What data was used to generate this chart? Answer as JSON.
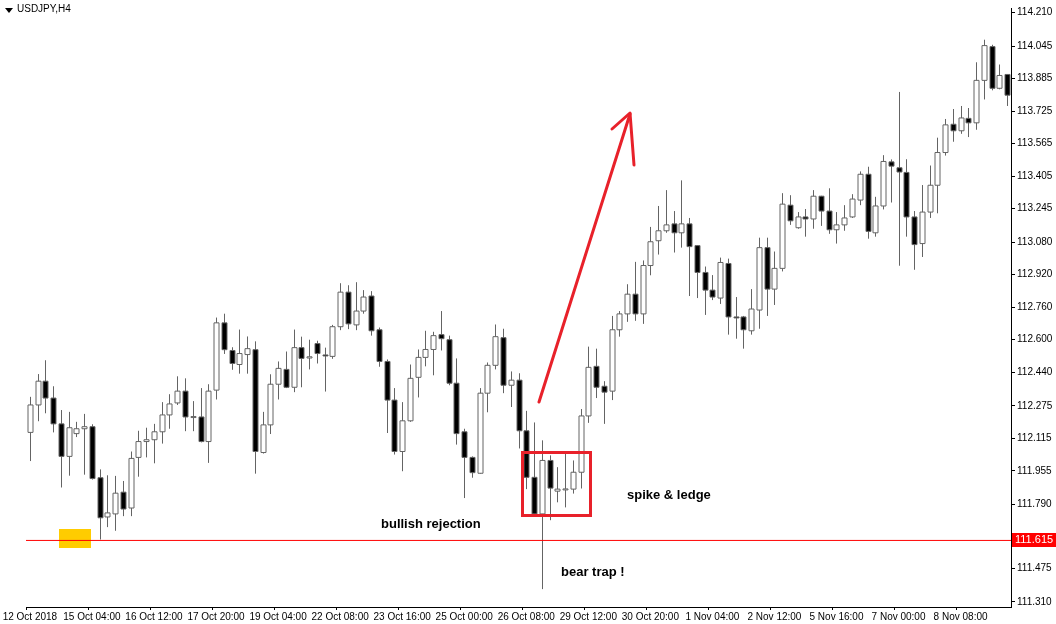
{
  "chart_data": {
    "type": "candlestick",
    "title": "USDJPY,H4",
    "categories": [
      "12 Oct 2018",
      null,
      null,
      null,
      null,
      null,
      null,
      null,
      "15 Oct 04:00",
      null,
      null,
      null,
      null,
      null,
      null,
      null,
      "16 Oct 12:00",
      null,
      null,
      null,
      null,
      null,
      null,
      null,
      "17 Oct 20:00",
      null,
      null,
      null,
      null,
      null,
      null,
      null,
      "19 Oct 04:00",
      null,
      null,
      null,
      null,
      null,
      null,
      null,
      "22 Oct 08:00",
      null,
      null,
      null,
      null,
      null,
      null,
      null,
      "23 Oct 16:00",
      null,
      null,
      null,
      null,
      null,
      null,
      null,
      "25 Oct 00:00",
      null,
      null,
      null,
      null,
      null,
      null,
      null,
      "26 Oct 08:00",
      null,
      null,
      null,
      null,
      null,
      null,
      null,
      "29 Oct 12:00",
      null,
      null,
      null,
      null,
      null,
      null,
      null,
      "30 Oct 20:00",
      null,
      null,
      null,
      null,
      null,
      null,
      null,
      "1 Nov 04:00",
      null,
      null,
      null,
      null,
      null,
      null,
      null,
      "2 Nov 12:00",
      null,
      null,
      null,
      null,
      null,
      null,
      null,
      "5 Nov 16:00",
      null,
      null,
      null,
      null,
      null,
      null,
      null,
      "7 Nov 00:00",
      null,
      null,
      null,
      null,
      null,
      null,
      null,
      "8 Nov 08:00",
      null,
      null,
      null,
      null,
      null,
      null
    ],
    "ohlc": [
      [
        112.144,
        112.319,
        112.003,
        112.279
      ],
      [
        112.279,
        112.431,
        112.199,
        112.396
      ],
      [
        112.396,
        112.499,
        112.238,
        112.313
      ],
      [
        112.313,
        112.371,
        112.144,
        112.186
      ],
      [
        112.186,
        112.254,
        111.873,
        112.026
      ],
      [
        112.026,
        112.245,
        111.931,
        112.167
      ],
      [
        112.138,
        112.196,
        112.121,
        112.162
      ],
      [
        112.162,
        112.235,
        111.936,
        112.172
      ],
      [
        112.172,
        112.184,
        111.912,
        111.917
      ],
      [
        111.921,
        111.962,
        111.617,
        111.724
      ],
      [
        111.728,
        111.933,
        111.678,
        111.748
      ],
      [
        111.743,
        111.93,
        111.66,
        111.845
      ],
      [
        111.85,
        111.905,
        111.732,
        111.767
      ],
      [
        111.772,
        112.05,
        111.732,
        112.016
      ],
      [
        112.021,
        112.152,
        111.926,
        112.099
      ],
      [
        112.099,
        112.167,
        112.021,
        112.108
      ],
      [
        112.108,
        112.186,
        111.992,
        112.147
      ],
      [
        112.147,
        112.293,
        112.089,
        112.23
      ],
      [
        112.23,
        112.332,
        112.162,
        112.284
      ],
      [
        112.289,
        112.42,
        112.279,
        112.347
      ],
      [
        112.347,
        112.41,
        112.15,
        112.22
      ],
      [
        112.218,
        112.298,
        112.15,
        112.222
      ],
      [
        112.22,
        112.362,
        112.095,
        112.099
      ],
      [
        112.099,
        112.381,
        111.994,
        112.347
      ],
      [
        112.352,
        112.709,
        112.306,
        112.683
      ],
      [
        112.683,
        112.728,
        112.53,
        112.551
      ],
      [
        112.547,
        112.563,
        112.452,
        112.483
      ],
      [
        112.478,
        112.65,
        112.433,
        112.532
      ],
      [
        112.527,
        112.616,
        112.433,
        112.556
      ],
      [
        112.551,
        112.592,
        111.941,
        112.05
      ],
      [
        112.045,
        112.245,
        112.04,
        112.181
      ],
      [
        112.181,
        112.43,
        112.136,
        112.381
      ],
      [
        112.381,
        112.493,
        112.306,
        112.459
      ],
      [
        112.454,
        112.542,
        112.362,
        112.366
      ],
      [
        112.366,
        112.65,
        112.342,
        112.561
      ],
      [
        112.561,
        112.615,
        112.366,
        112.508
      ],
      [
        112.51,
        112.6,
        112.454,
        112.516
      ],
      [
        112.581,
        112.595,
        112.483,
        112.532
      ],
      [
        112.525,
        112.561,
        112.345,
        112.52
      ],
      [
        112.518,
        112.673,
        112.506,
        112.664
      ],
      [
        112.664,
        112.878,
        112.647,
        112.834
      ],
      [
        112.834,
        112.868,
        112.652,
        112.678
      ],
      [
        112.673,
        112.883,
        112.647,
        112.741
      ],
      [
        112.741,
        112.844,
        112.728,
        112.81
      ],
      [
        112.815,
        112.839,
        112.62,
        112.644
      ],
      [
        112.649,
        112.66,
        112.467,
        112.493
      ],
      [
        112.493,
        112.503,
        112.141,
        112.303
      ],
      [
        112.303,
        112.362,
        112.035,
        112.05
      ],
      [
        112.05,
        112.293,
        111.953,
        112.201
      ],
      [
        112.201,
        112.478,
        112.196,
        112.41
      ],
      [
        112.415,
        112.552,
        112.316,
        112.513
      ],
      [
        112.513,
        112.644,
        112.469,
        112.552
      ],
      [
        112.552,
        112.639,
        112.425,
        112.62
      ],
      [
        112.625,
        112.741,
        112.547,
        112.605
      ],
      [
        112.6,
        112.62,
        112.376,
        112.386
      ],
      [
        112.386,
        112.508,
        112.084,
        112.138
      ],
      [
        112.147,
        112.162,
        111.821,
        112.021
      ],
      [
        112.021,
        112.026,
        111.921,
        111.946
      ],
      [
        111.943,
        112.362,
        111.941,
        112.337
      ],
      [
        112.337,
        112.488,
        112.243,
        112.474
      ],
      [
        112.474,
        112.675,
        112.454,
        112.615
      ],
      [
        112.61,
        112.654,
        112.337,
        112.376
      ],
      [
        112.376,
        112.444,
        112.269,
        112.401
      ],
      [
        112.401,
        112.435,
        112.065,
        112.152
      ],
      [
        112.152,
        112.25,
        111.865,
        111.923
      ],
      [
        111.923,
        112.193,
        111.738,
        111.743
      ],
      [
        111.743,
        112.105,
        111.373,
        112.006
      ],
      [
        112.006,
        112.031,
        111.712,
        111.87
      ],
      [
        111.855,
        111.973,
        111.8,
        111.865
      ],
      [
        111.863,
        112.046,
        111.775,
        111.866
      ],
      [
        111.865,
        112.006,
        111.843,
        111.948
      ],
      [
        111.948,
        112.259,
        111.868,
        112.225
      ],
      [
        112.225,
        112.566,
        112.191,
        112.464
      ],
      [
        112.469,
        112.556,
        112.313,
        112.366
      ],
      [
        112.371,
        112.396,
        112.186,
        112.342
      ],
      [
        112.347,
        112.717,
        112.303,
        112.649
      ],
      [
        112.649,
        112.741,
        112.615,
        112.727
      ],
      [
        112.727,
        112.873,
        112.688,
        112.824
      ],
      [
        112.824,
        112.983,
        112.693,
        112.727
      ],
      [
        112.727,
        112.99,
        112.678,
        112.965
      ],
      [
        112.965,
        113.155,
        112.917,
        113.082
      ],
      [
        113.087,
        113.258,
        113.019,
        113.136
      ],
      [
        113.136,
        113.336,
        113.126,
        113.165
      ],
      [
        113.17,
        113.233,
        113.029,
        113.126
      ],
      [
        113.126,
        113.384,
        113.053,
        113.17
      ],
      [
        113.17,
        113.199,
        112.815,
        113.058
      ],
      [
        113.063,
        113.064,
        112.805,
        112.931
      ],
      [
        112.931,
        112.96,
        112.722,
        112.844
      ],
      [
        112.844,
        112.918,
        112.795,
        112.81
      ],
      [
        112.805,
        113.004,
        112.776,
        112.98
      ],
      [
        112.975,
        112.999,
        112.625,
        112.712
      ],
      [
        112.712,
        112.81,
        112.605,
        112.71
      ],
      [
        112.712,
        112.717,
        112.556,
        112.649
      ],
      [
        112.644,
        112.849,
        112.625,
        112.751
      ],
      [
        112.746,
        113.102,
        112.654,
        113.053
      ],
      [
        113.053,
        113.102,
        112.717,
        112.849
      ],
      [
        112.849,
        113.034,
        112.771,
        112.951
      ],
      [
        112.951,
        113.321,
        112.936,
        113.267
      ],
      [
        113.262,
        113.311,
        113.165,
        113.185
      ],
      [
        113.151,
        113.228,
        113.146,
        113.204
      ],
      [
        113.204,
        113.243,
        113.107,
        113.194
      ],
      [
        113.194,
        113.336,
        113.146,
        113.306
      ],
      [
        113.306,
        113.308,
        113.16,
        113.233
      ],
      [
        113.233,
        113.345,
        113.121,
        113.141
      ],
      [
        113.141,
        113.228,
        113.073,
        113.165
      ],
      [
        113.165,
        113.262,
        113.136,
        113.199
      ],
      [
        113.204,
        113.316,
        113.199,
        113.292
      ],
      [
        113.287,
        113.428,
        113.262,
        113.414
      ],
      [
        113.414,
        113.451,
        113.097,
        113.133
      ],
      [
        113.126,
        113.303,
        113.107,
        113.258
      ],
      [
        113.258,
        113.508,
        113.241,
        113.477
      ],
      [
        113.475,
        113.487,
        113.275,
        113.454
      ],
      [
        113.446,
        113.819,
        112.964,
        113.425
      ],
      [
        113.423,
        113.488,
        113.107,
        113.204
      ],
      [
        113.204,
        113.233,
        112.944,
        113.068
      ],
      [
        113.073,
        113.361,
        113.007,
        113.228
      ],
      [
        113.228,
        113.457,
        113.199,
        113.36
      ],
      [
        113.36,
        113.594,
        113.222,
        113.521
      ],
      [
        113.521,
        113.686,
        113.506,
        113.657
      ],
      [
        113.66,
        113.735,
        113.574,
        113.628
      ],
      [
        113.628,
        113.75,
        113.613,
        113.691
      ],
      [
        113.689,
        113.74,
        113.597,
        113.667
      ],
      [
        113.667,
        113.965,
        113.633,
        113.876
      ],
      [
        113.876,
        114.076,
        113.782,
        114.047
      ],
      [
        114.042,
        114.051,
        113.827,
        113.837
      ],
      [
        113.837,
        113.954,
        113.832,
        113.9
      ],
      [
        113.905,
        113.905,
        113.75,
        113.803
      ]
    ],
    "ylim": [
      111.285,
      114.232
    ],
    "yticks": [
      {
        "value": 114.21,
        "label": "114.210"
      },
      {
        "value": 114.045,
        "label": "114.045"
      },
      {
        "value": 113.885,
        "label": "113.885"
      },
      {
        "value": 113.725,
        "label": "113.725"
      },
      {
        "value": 113.565,
        "label": "113.565"
      },
      {
        "value": 113.405,
        "label": "113.405"
      },
      {
        "value": 113.245,
        "label": "113.245"
      },
      {
        "value": 113.08,
        "label": "113.080"
      },
      {
        "value": 112.92,
        "label": "112.920"
      },
      {
        "value": 112.76,
        "label": "112.760"
      },
      {
        "value": 112.6,
        "label": "112.600"
      },
      {
        "value": 112.44,
        "label": "112.440"
      },
      {
        "value": 112.275,
        "label": "112.275"
      },
      {
        "value": 112.115,
        "label": "112.115"
      },
      {
        "value": 111.955,
        "label": "111.955"
      },
      {
        "value": 111.79,
        "label": "111.790"
      },
      {
        "value": 111.475,
        "label": "111.475"
      },
      {
        "value": 111.31,
        "label": "111.310"
      }
    ],
    "ref_lines": [
      {
        "axis": "y",
        "value": 111.615,
        "label": "111.615",
        "color": "#ff0000"
      }
    ],
    "annotations": [
      "bullish rejection",
      "spike & ledge",
      "bear trap !"
    ]
  }
}
